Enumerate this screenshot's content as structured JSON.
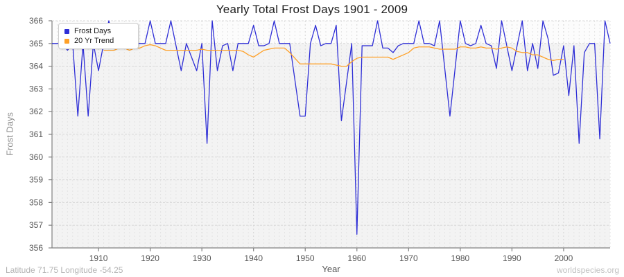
{
  "title": "Yearly Total Frost Days 1901 - 2009",
  "footer": {
    "left": "Latitude 71.75 Longitude -54.25",
    "right": "worldspecies.org"
  },
  "axes": {
    "x_label": "Year",
    "y_label": "Frost Days"
  },
  "legend": [
    {
      "label": "Frost Days",
      "color": "#2e2ed6"
    },
    {
      "label": "20 Yr Trend",
      "color": "#ffa026"
    }
  ],
  "colors": {
    "plot_bg": "#f3f3f3",
    "band_above_365": "#fcfcfc",
    "grid_vertical": "#e3e3e3",
    "grid_vertical_decade": "#d4d4d4",
    "grid_horizontal": "#d8d8d8",
    "spine": "#808080",
    "tick_label": "#555555"
  },
  "chart_data": {
    "type": "line",
    "title": "Yearly Total Frost Days 1901 - 2009",
    "xlabel": "Year",
    "ylabel": "Frost Days",
    "x_range": [
      1901,
      2009
    ],
    "ylim": [
      356,
      366
    ],
    "x_ticks": [
      1910,
      1920,
      1930,
      1940,
      1950,
      1960,
      1970,
      1980,
      1990,
      2000
    ],
    "y_ticks": [
      356,
      357,
      358,
      359,
      360,
      361,
      362,
      363,
      364,
      365,
      366
    ],
    "grid": true,
    "legend_position": "top-left",
    "series": [
      {
        "name": "Frost Days",
        "color": "#2e2ed6",
        "x_start": 1901,
        "values": [
          365,
          365,
          365,
          364.7,
          365,
          361.8,
          365,
          361.8,
          365,
          363.8,
          365,
          366,
          365,
          365,
          365,
          364.8,
          365,
          365,
          365,
          366,
          365,
          365,
          365,
          366,
          364.9,
          363.8,
          365,
          364.4,
          363.8,
          365,
          360.6,
          366,
          363.8,
          364.9,
          365,
          363.8,
          365,
          365,
          365,
          365.8,
          364.9,
          364.9,
          365,
          366,
          365,
          365,
          365,
          363.4,
          361.8,
          361.8,
          365,
          365.8,
          364.9,
          365,
          365,
          365.8,
          361.6,
          363.3,
          365,
          356.6,
          364.9,
          364.9,
          364.9,
          366,
          364.8,
          364.8,
          364.6,
          364.9,
          365,
          365,
          365,
          366,
          365,
          365,
          364.9,
          366,
          363.9,
          361.8,
          363.9,
          366,
          365,
          364.9,
          365,
          365.8,
          365,
          364.9,
          363.9,
          366,
          364.9,
          363.8,
          364.9,
          366,
          363.8,
          365,
          363.9,
          366,
          365.2,
          363.6,
          363.7,
          364.9,
          362.7,
          364.9,
          360.6,
          364.6,
          365,
          365,
          360.8,
          366,
          365
        ]
      },
      {
        "name": "20 Yr Trend",
        "color": "#ffa026",
        "x_start": 1911,
        "values": [
          364.7,
          364.7,
          364.7,
          364.8,
          364.8,
          364.7,
          364.8,
          364.8,
          364.9,
          364.95,
          364.9,
          364.8,
          364.7,
          364.7,
          364.7,
          364.7,
          364.7,
          364.7,
          364.7,
          364.75,
          364.7,
          364.7,
          364.7,
          364.7,
          364.7,
          364.7,
          364.7,
          364.65,
          364.5,
          364.4,
          364.55,
          364.7,
          364.75,
          364.8,
          364.8,
          364.8,
          364.6,
          364.35,
          364.1,
          364.1,
          364.1,
          364.1,
          364.1,
          364.1,
          364.1,
          364.05,
          364,
          364,
          364.2,
          364.35,
          364.4,
          364.4,
          364.4,
          364.4,
          364.4,
          364.4,
          364.3,
          364.4,
          364.5,
          364.6,
          364.8,
          364.85,
          364.85,
          364.85,
          364.8,
          364.75,
          364.75,
          364.75,
          364.75,
          364.85,
          364.85,
          364.8,
          364.8,
          364.85,
          364.8,
          364.8,
          364.75,
          364.8,
          364.85,
          364.8,
          364.65,
          364.6,
          364.6,
          364.5,
          364.5,
          364.4,
          364.3,
          364.25,
          364.3,
          364.3
        ]
      }
    ]
  }
}
